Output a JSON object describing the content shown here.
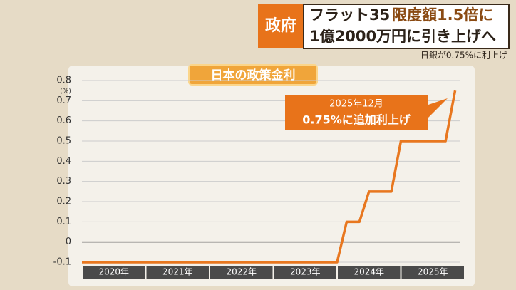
{
  "header": {
    "badge": "政府",
    "line1a": "フラット35",
    "line1b": "限度額1.5倍に",
    "line2": "1億2000万円に引き上げへ",
    "subtitle": "日銀が0.75%に利上げ"
  },
  "chart_data": {
    "type": "line",
    "title": "日本の政策金利",
    "y_label": "(%)",
    "x": [
      2020,
      2024.0,
      2024.15,
      2024.35,
      2024.5,
      2024.85,
      2025.0,
      2025.7,
      2025.85
    ],
    "values": [
      -0.1,
      -0.1,
      0.1,
      0.1,
      0.25,
      0.25,
      0.5,
      0.5,
      0.75
    ],
    "color": "#e8771f",
    "xlim": [
      2020,
      2026
    ],
    "xticks": [
      {
        "value": 2020.5,
        "label": "2020年"
      },
      {
        "value": 2021.5,
        "label": "2021年"
      },
      {
        "value": 2022.5,
        "label": "2022年"
      },
      {
        "value": 2023.5,
        "label": "2023年"
      },
      {
        "value": 2024.5,
        "label": "2024年"
      },
      {
        "value": 2025.5,
        "label": "2025年"
      }
    ],
    "ylim": [
      -0.1,
      0.8
    ],
    "yticks": [
      -0.1,
      0,
      0.1,
      0.2,
      0.3,
      0.4,
      0.5,
      0.6,
      0.7,
      0.8
    ],
    "grid": true,
    "annotations": [
      "2025年12月",
      "0.75%に追加利上げ"
    ]
  }
}
